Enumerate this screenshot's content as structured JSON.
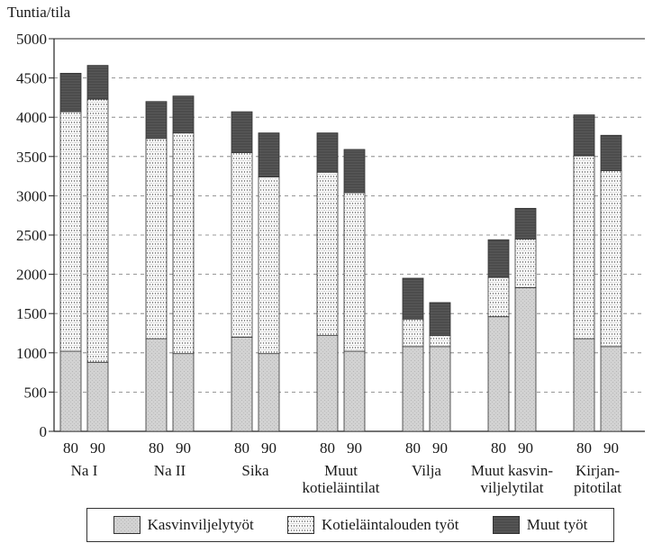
{
  "chart_data": {
    "type": "bar",
    "stacked": true,
    "ylabel": "Tuntia/tila",
    "ylim": [
      0,
      5000
    ],
    "yticks": [
      0,
      500,
      1000,
      1500,
      2000,
      2500,
      3000,
      3500,
      4000,
      4500,
      5000
    ],
    "grid": "horizontal dashed",
    "groups": [
      {
        "label": "Na I",
        "bars": [
          {
            "year": "80",
            "values": [
              1020,
              3050,
              490
            ]
          },
          {
            "year": "90",
            "values": [
              880,
              3350,
              430
            ]
          }
        ]
      },
      {
        "label": "Na II",
        "bars": [
          {
            "year": "80",
            "values": [
              1180,
              2550,
              470
            ]
          },
          {
            "year": "90",
            "values": [
              990,
              2810,
              470
            ]
          }
        ]
      },
      {
        "label": "Sika",
        "bars": [
          {
            "year": "80",
            "values": [
              1200,
              2350,
              520
            ]
          },
          {
            "year": "90",
            "values": [
              990,
              2250,
              560
            ]
          }
        ]
      },
      {
        "label": "Muut kotieläintilat",
        "label_lines": [
          "Muut",
          "kotieläintilat"
        ],
        "bars": [
          {
            "year": "80",
            "values": [
              1220,
              2080,
              500
            ]
          },
          {
            "year": "90",
            "values": [
              1020,
              2020,
              550
            ]
          }
        ]
      },
      {
        "label": "Vilja",
        "bars": [
          {
            "year": "80",
            "values": [
              1080,
              350,
              520
            ]
          },
          {
            "year": "90",
            "values": [
              1080,
              140,
              420
            ]
          }
        ]
      },
      {
        "label": "Muut kasvinviljelytilat",
        "label_lines": [
          "Muut kasvin-",
          "viljelytilat"
        ],
        "bars": [
          {
            "year": "80",
            "values": [
              1460,
              500,
              480
            ]
          },
          {
            "year": "90",
            "values": [
              1830,
              620,
              390
            ]
          }
        ]
      },
      {
        "label": "Kirjanpitotilat",
        "label_lines": [
          "Kirjan-",
          "pitotilat"
        ],
        "bars": [
          {
            "year": "80",
            "values": [
              1180,
              2330,
              520
            ]
          },
          {
            "year": "90",
            "values": [
              1080,
              2240,
              450
            ]
          }
        ]
      }
    ],
    "series": [
      {
        "name": "Kasvinviljelytyöt",
        "color": "#cfcfcf",
        "pattern": "light-stipple"
      },
      {
        "name": "Kotieläintalouden työt",
        "color": "#ffffff",
        "pattern": "dotted-grid"
      },
      {
        "name": "Muut työt",
        "color": "#5a5a5a",
        "pattern": "dark-hatch"
      }
    ],
    "legend_position": "bottom"
  }
}
